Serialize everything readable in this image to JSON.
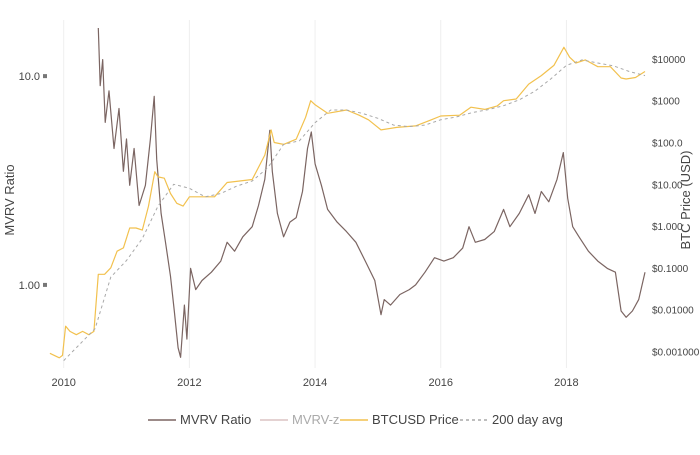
{
  "chart_data": {
    "type": "line",
    "xlabel": "",
    "ylabel_left": "MVRV Ratio",
    "ylabel_right": "BTC Price (USD)",
    "x_ticks": [
      "2010",
      "2012",
      "2014",
      "2016",
      "2018"
    ],
    "x_range": [
      2009.75,
      2019.33
    ],
    "y_left_scale": "log",
    "y_left_range": [
      0.4,
      17
    ],
    "y_left_ticks": [
      {
        "value": 1,
        "label": "1.00"
      },
      {
        "value": 10,
        "label": "10.0"
      }
    ],
    "y_right_scale": "log",
    "y_right_range": [
      0.0004,
      55000
    ],
    "y_right_ticks": [
      {
        "value": 0.001,
        "label": "$0.001000"
      },
      {
        "value": 0.01,
        "label": "$0.01000"
      },
      {
        "value": 0.1,
        "label": "$0.1000"
      },
      {
        "value": 1,
        "label": "$1.000"
      },
      {
        "value": 10,
        "label": "$10.00"
      },
      {
        "value": 100,
        "label": "$100.0"
      },
      {
        "value": 1000,
        "label": "$1000"
      },
      {
        "value": 10000,
        "label": "$10000"
      }
    ],
    "grid": "vertical",
    "legend_position": "bottom",
    "legend": [
      "MVRV Ratio",
      "MVRV-z",
      "BTCUSD Price",
      "200 day avg"
    ],
    "series": [
      {
        "name": "MVRV Ratio",
        "axis": "left",
        "color": "#7b6562",
        "style": "solid",
        "points": [
          [
            2010.55,
            17.0
          ],
          [
            2010.58,
            9.0
          ],
          [
            2010.62,
            12.0
          ],
          [
            2010.66,
            6.0
          ],
          [
            2010.72,
            8.5
          ],
          [
            2010.8,
            4.5
          ],
          [
            2010.88,
            7.0
          ],
          [
            2010.95,
            3.5
          ],
          [
            2011.0,
            5.0
          ],
          [
            2011.05,
            3.0
          ],
          [
            2011.12,
            4.5
          ],
          [
            2011.2,
            2.4
          ],
          [
            2011.3,
            3.0
          ],
          [
            2011.38,
            5.0
          ],
          [
            2011.44,
            8.0
          ],
          [
            2011.48,
            4.0
          ],
          [
            2011.55,
            2.2
          ],
          [
            2011.62,
            1.6
          ],
          [
            2011.7,
            1.1
          ],
          [
            2011.76,
            0.75
          ],
          [
            2011.82,
            0.5
          ],
          [
            2011.86,
            0.45
          ],
          [
            2011.92,
            0.8
          ],
          [
            2011.96,
            0.55
          ],
          [
            2012.02,
            1.2
          ],
          [
            2012.1,
            0.95
          ],
          [
            2012.2,
            1.05
          ],
          [
            2012.35,
            1.15
          ],
          [
            2012.5,
            1.3
          ],
          [
            2012.6,
            1.6
          ],
          [
            2012.72,
            1.45
          ],
          [
            2012.85,
            1.7
          ],
          [
            2013.0,
            1.9
          ],
          [
            2013.1,
            2.4
          ],
          [
            2013.2,
            3.2
          ],
          [
            2013.28,
            5.5
          ],
          [
            2013.32,
            3.5
          ],
          [
            2013.4,
            2.2
          ],
          [
            2013.5,
            1.7
          ],
          [
            2013.6,
            2.0
          ],
          [
            2013.7,
            2.1
          ],
          [
            2013.8,
            2.8
          ],
          [
            2013.88,
            4.5
          ],
          [
            2013.94,
            5.4
          ],
          [
            2014.0,
            3.8
          ],
          [
            2014.1,
            3.0
          ],
          [
            2014.2,
            2.3
          ],
          [
            2014.35,
            2.0
          ],
          [
            2014.5,
            1.8
          ],
          [
            2014.65,
            1.6
          ],
          [
            2014.8,
            1.3
          ],
          [
            2014.95,
            1.05
          ],
          [
            2015.05,
            0.72
          ],
          [
            2015.1,
            0.85
          ],
          [
            2015.2,
            0.8
          ],
          [
            2015.35,
            0.9
          ],
          [
            2015.5,
            0.95
          ],
          [
            2015.6,
            1.0
          ],
          [
            2015.75,
            1.15
          ],
          [
            2015.9,
            1.35
          ],
          [
            2016.05,
            1.3
          ],
          [
            2016.2,
            1.35
          ],
          [
            2016.35,
            1.5
          ],
          [
            2016.45,
            1.9
          ],
          [
            2016.55,
            1.6
          ],
          [
            2016.7,
            1.65
          ],
          [
            2016.85,
            1.8
          ],
          [
            2017.0,
            2.3
          ],
          [
            2017.1,
            1.9
          ],
          [
            2017.25,
            2.2
          ],
          [
            2017.4,
            2.7
          ],
          [
            2017.5,
            2.2
          ],
          [
            2017.6,
            2.8
          ],
          [
            2017.72,
            2.5
          ],
          [
            2017.85,
            3.2
          ],
          [
            2017.95,
            4.3
          ],
          [
            2018.02,
            2.6
          ],
          [
            2018.1,
            1.9
          ],
          [
            2018.2,
            1.7
          ],
          [
            2018.35,
            1.45
          ],
          [
            2018.5,
            1.3
          ],
          [
            2018.65,
            1.2
          ],
          [
            2018.78,
            1.15
          ],
          [
            2018.87,
            0.75
          ],
          [
            2018.95,
            0.7
          ],
          [
            2019.05,
            0.75
          ],
          [
            2019.15,
            0.85
          ],
          [
            2019.25,
            1.15
          ]
        ]
      },
      {
        "name": "MVRV-z",
        "axis": "left",
        "color": "#dcc4c4",
        "style": "solid",
        "points": []
      },
      {
        "name": "BTCUSD Price",
        "axis": "right",
        "color": "#f2c14e",
        "style": "solid",
        "points": [
          [
            2009.78,
            0.0009
          ],
          [
            2009.85,
            0.0008
          ],
          [
            2009.93,
            0.0007
          ],
          [
            2009.98,
            0.0008
          ],
          [
            2010.03,
            0.004
          ],
          [
            2010.1,
            0.003
          ],
          [
            2010.2,
            0.0025
          ],
          [
            2010.3,
            0.003
          ],
          [
            2010.4,
            0.0025
          ],
          [
            2010.48,
            0.003
          ],
          [
            2010.55,
            0.07
          ],
          [
            2010.65,
            0.07
          ],
          [
            2010.75,
            0.1
          ],
          [
            2010.85,
            0.25
          ],
          [
            2010.95,
            0.3
          ],
          [
            2011.05,
            0.9
          ],
          [
            2011.15,
            0.9
          ],
          [
            2011.25,
            0.8
          ],
          [
            2011.35,
            3.0
          ],
          [
            2011.45,
            20.0
          ],
          [
            2011.5,
            15.0
          ],
          [
            2011.6,
            14.0
          ],
          [
            2011.7,
            6.0
          ],
          [
            2011.8,
            3.5
          ],
          [
            2011.9,
            3.0
          ],
          [
            2012.0,
            5.0
          ],
          [
            2012.2,
            5.0
          ],
          [
            2012.4,
            5.0
          ],
          [
            2012.6,
            11.0
          ],
          [
            2012.8,
            12.0
          ],
          [
            2013.0,
            13.0
          ],
          [
            2013.2,
            50.0
          ],
          [
            2013.3,
            200.0
          ],
          [
            2013.35,
            100.0
          ],
          [
            2013.5,
            90.0
          ],
          [
            2013.7,
            120.0
          ],
          [
            2013.85,
            400.0
          ],
          [
            2013.93,
            1000.0
          ],
          [
            2014.0,
            800.0
          ],
          [
            2014.2,
            500.0
          ],
          [
            2014.5,
            600.0
          ],
          [
            2014.7,
            450.0
          ],
          [
            2014.85,
            350.0
          ],
          [
            2015.05,
            200.0
          ],
          [
            2015.3,
            230.0
          ],
          [
            2015.6,
            250.0
          ],
          [
            2015.85,
            350.0
          ],
          [
            2016.0,
            430.0
          ],
          [
            2016.3,
            450.0
          ],
          [
            2016.48,
            700.0
          ],
          [
            2016.7,
            620.0
          ],
          [
            2016.9,
            750.0
          ],
          [
            2017.0,
            1000.0
          ],
          [
            2017.2,
            1100.0
          ],
          [
            2017.4,
            2500.0
          ],
          [
            2017.6,
            4000.0
          ],
          [
            2017.8,
            7000.0
          ],
          [
            2017.96,
            19000.0
          ],
          [
            2018.05,
            11000.0
          ],
          [
            2018.15,
            8000.0
          ],
          [
            2018.3,
            9500.0
          ],
          [
            2018.5,
            6500.0
          ],
          [
            2018.7,
            6500.0
          ],
          [
            2018.87,
            3500.0
          ],
          [
            2018.95,
            3300.0
          ],
          [
            2019.1,
            3600.0
          ],
          [
            2019.25,
            5000.0
          ]
        ]
      },
      {
        "name": "200 day avg",
        "axis": "right",
        "color": "#a8a8a8",
        "style": "dashed",
        "points": [
          [
            2010.0,
            0.0006
          ],
          [
            2010.5,
            0.0035
          ],
          [
            2010.75,
            0.06
          ],
          [
            2011.0,
            0.15
          ],
          [
            2011.25,
            0.5
          ],
          [
            2011.5,
            3.0
          ],
          [
            2011.75,
            10.0
          ],
          [
            2012.0,
            8.0
          ],
          [
            2012.25,
            5.0
          ],
          [
            2012.5,
            6.0
          ],
          [
            2012.75,
            9.0
          ],
          [
            2013.0,
            12.0
          ],
          [
            2013.25,
            25.0
          ],
          [
            2013.5,
            90.0
          ],
          [
            2013.75,
            110.0
          ],
          [
            2014.0,
            300.0
          ],
          [
            2014.25,
            600.0
          ],
          [
            2014.5,
            600.0
          ],
          [
            2014.75,
            500.0
          ],
          [
            2015.0,
            380.0
          ],
          [
            2015.25,
            260.0
          ],
          [
            2015.5,
            240.0
          ],
          [
            2015.75,
            260.0
          ],
          [
            2016.0,
            350.0
          ],
          [
            2016.25,
            410.0
          ],
          [
            2016.5,
            520.0
          ],
          [
            2016.75,
            610.0
          ],
          [
            2017.0,
            760.0
          ],
          [
            2017.25,
            1050.0
          ],
          [
            2017.5,
            1700.0
          ],
          [
            2017.75,
            3300.0
          ],
          [
            2018.0,
            7000.0
          ],
          [
            2018.25,
            9500.0
          ],
          [
            2018.5,
            8000.0
          ],
          [
            2018.75,
            6800.0
          ],
          [
            2019.0,
            5000.0
          ],
          [
            2019.25,
            4000.0
          ]
        ]
      }
    ]
  }
}
